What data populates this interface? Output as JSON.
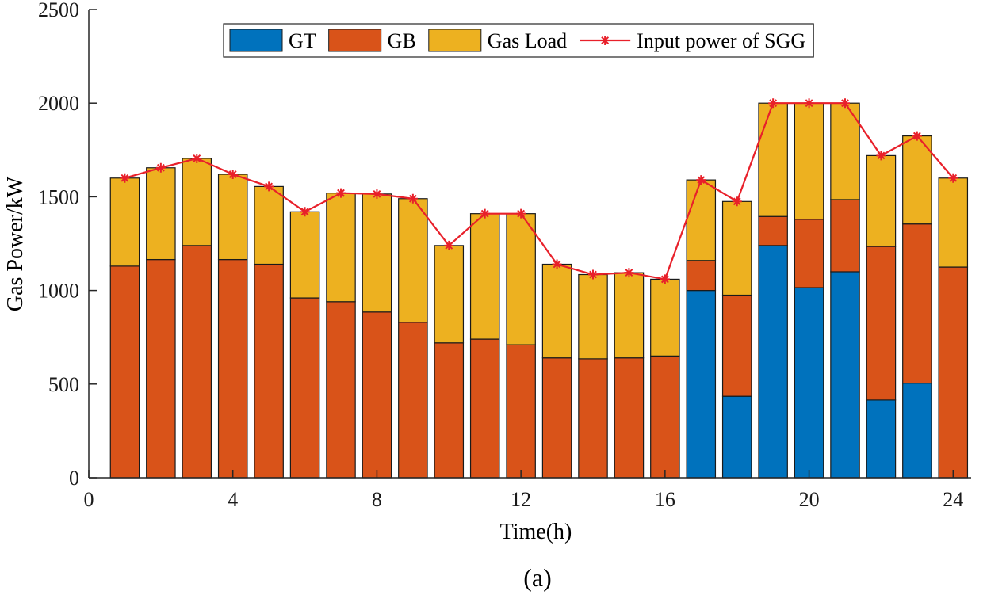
{
  "chart_data": {
    "type": "bar",
    "stacked": true,
    "xlabel": "Time(h)",
    "ylabel": "Gas Power/kW",
    "caption": "(a)",
    "xlim": [
      0,
      24.5
    ],
    "ylim": [
      0,
      2500
    ],
    "xticks": [
      0,
      4,
      8,
      12,
      16,
      20,
      24
    ],
    "yticks": [
      0,
      500,
      1000,
      1500,
      2000,
      2500
    ],
    "legend_position": "top-center",
    "x": [
      1,
      2,
      3,
      4,
      5,
      6,
      7,
      8,
      9,
      10,
      11,
      12,
      13,
      14,
      15,
      16,
      17,
      18,
      19,
      20,
      21,
      22,
      23,
      24
    ],
    "series": [
      {
        "name": "GT",
        "color": "#0072BD",
        "values": [
          0,
          0,
          0,
          0,
          0,
          0,
          0,
          0,
          0,
          0,
          0,
          0,
          0,
          0,
          0,
          0,
          1000,
          435,
          1240,
          1015,
          1100,
          415,
          505,
          0
        ]
      },
      {
        "name": "GB",
        "color": "#D95319",
        "values": [
          1130,
          1165,
          1240,
          1165,
          1140,
          960,
          940,
          885,
          830,
          720,
          740,
          710,
          640,
          635,
          640,
          650,
          160,
          540,
          155,
          365,
          385,
          820,
          850,
          1125
        ]
      },
      {
        "name": "Gas Load",
        "color": "#EDB120",
        "values": [
          470,
          490,
          465,
          455,
          415,
          460,
          580,
          630,
          660,
          520,
          670,
          700,
          500,
          450,
          455,
          410,
          430,
          500,
          605,
          620,
          515,
          485,
          470,
          475
        ]
      }
    ],
    "line_series": {
      "name": "Input power of SGG",
      "color": "#E8202A",
      "values": [
        1600,
        1655,
        1705,
        1620,
        1555,
        1420,
        1520,
        1515,
        1490,
        1240,
        1410,
        1410,
        1140,
        1085,
        1095,
        1060,
        1590,
        1475,
        2000,
        2000,
        2000,
        1720,
        1825,
        1600
      ]
    }
  }
}
